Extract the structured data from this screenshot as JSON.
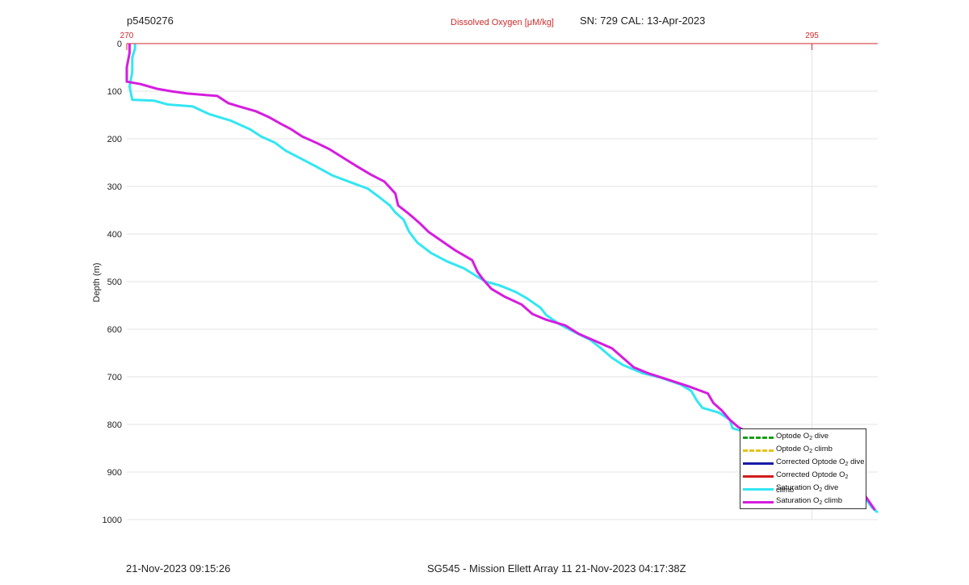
{
  "header": {
    "profile_id": "p5450276",
    "serial_cal": "SN: 729  CAL: 13-Apr-2023"
  },
  "footer": {
    "timestamp": "21-Nov-2023 09:15:26",
    "mission": "SG545 - Mission Ellett Array 11 21-Nov-2023 04:17:38Z"
  },
  "colors": {
    "optode_dive": "#1a9e1a",
    "optode_climb": "#e6c21a",
    "corrected_dive": "#1a1aa8",
    "corrected_climb": "#d01c1c",
    "saturation_dive": "#33e6f2",
    "saturation_climb": "#d61ce0",
    "top_axis": "#d12a2a"
  },
  "chart_data": {
    "type": "line",
    "title": "Dissolved Oxygen [μM/kg]",
    "xlabel": "Dissolved Oxygen [μM/kg]",
    "ylabel": "Depth (m)",
    "xlim": [
      270,
      297.4
    ],
    "ylim": [
      0,
      1000
    ],
    "y_reversed": true,
    "x_ticks": [
      270,
      295
    ],
    "y_ticks": [
      0,
      100,
      200,
      300,
      400,
      500,
      600,
      700,
      800,
      900,
      1000
    ],
    "grid": true,
    "legend_position": "bottom-right",
    "legend": [
      {
        "label": "Optode O",
        "sub": "2",
        "suffix": " dive",
        "color": "#1a9e1a",
        "style": "dashed"
      },
      {
        "label": "Optode O",
        "sub": "2",
        "suffix": " climb",
        "color": "#e6c21a",
        "style": "dashed"
      },
      {
        "label": "Corrected Optode O",
        "sub": "2",
        "suffix": " dive",
        "color": "#1a1aa8",
        "style": "solid"
      },
      {
        "label": "Corrected Optode O",
        "sub": "2",
        "suffix": " climb",
        "color": "#d01c1c",
        "style": "solid"
      },
      {
        "label": "Saturation O",
        "sub": "2",
        "suffix": " dive",
        "color": "#33e6f2",
        "style": "solid"
      },
      {
        "label": "Saturation O",
        "sub": "2",
        "suffix": " climb",
        "color": "#d61ce0",
        "style": "solid"
      }
    ],
    "series": [
      {
        "name": "Saturation O2 dive",
        "color": "#33e6f2",
        "points": [
          [
            270.3,
            1
          ],
          [
            270.3,
            10
          ],
          [
            270.2,
            30
          ],
          [
            270.2,
            60
          ],
          [
            270.1,
            90
          ],
          [
            270.2,
            118
          ],
          [
            271.0,
            120
          ],
          [
            271.5,
            128
          ],
          [
            272.4,
            132
          ],
          [
            273.0,
            148
          ],
          [
            273.8,
            162
          ],
          [
            274.5,
            180
          ],
          [
            274.9,
            195
          ],
          [
            275.4,
            208
          ],
          [
            275.8,
            225
          ],
          [
            276.3,
            240
          ],
          [
            276.9,
            258
          ],
          [
            277.5,
            277
          ],
          [
            278.2,
            292
          ],
          [
            278.8,
            305
          ],
          [
            279.2,
            322
          ],
          [
            279.6,
            340
          ],
          [
            279.8,
            355
          ],
          [
            280.1,
            370
          ],
          [
            280.3,
            395
          ],
          [
            280.6,
            418
          ],
          [
            281.1,
            440
          ],
          [
            281.7,
            458
          ],
          [
            282.3,
            472
          ],
          [
            282.8,
            490
          ],
          [
            283.1,
            500
          ],
          [
            283.6,
            508
          ],
          [
            284.2,
            522
          ],
          [
            284.6,
            535
          ],
          [
            285.1,
            555
          ],
          [
            285.3,
            570
          ],
          [
            285.8,
            590
          ],
          [
            286.3,
            605
          ],
          [
            286.9,
            622
          ],
          [
            287.3,
            640
          ],
          [
            287.7,
            660
          ],
          [
            288.1,
            675
          ],
          [
            288.8,
            692
          ],
          [
            289.5,
            702
          ],
          [
            290.2,
            716
          ],
          [
            290.6,
            730
          ],
          [
            290.8,
            750
          ],
          [
            291.0,
            765
          ],
          [
            291.6,
            775
          ],
          [
            292.0,
            790
          ],
          [
            292.1,
            808
          ],
          [
            292.8,
            820
          ],
          [
            293.3,
            830
          ],
          [
            294.1,
            840
          ],
          [
            294.3,
            850
          ],
          [
            294.9,
            862
          ],
          [
            295.3,
            880
          ],
          [
            295.7,
            895
          ],
          [
            296.2,
            910
          ],
          [
            296.5,
            925
          ],
          [
            296.9,
            945
          ],
          [
            297.0,
            960
          ],
          [
            297.2,
            975
          ],
          [
            297.4,
            985
          ]
        ]
      },
      {
        "name": "Saturation O2 climb",
        "color": "#d61ce0",
        "points": [
          [
            270.1,
            0
          ],
          [
            270.1,
            20
          ],
          [
            270.0,
            50
          ],
          [
            270.0,
            80
          ],
          [
            270.5,
            85
          ],
          [
            271.1,
            95
          ],
          [
            271.6,
            100
          ],
          [
            272.2,
            105
          ],
          [
            273.3,
            110
          ],
          [
            273.7,
            125
          ],
          [
            274.1,
            132
          ],
          [
            274.7,
            142
          ],
          [
            275.2,
            155
          ],
          [
            275.6,
            168
          ],
          [
            276.0,
            180
          ],
          [
            276.4,
            195
          ],
          [
            276.9,
            208
          ],
          [
            277.4,
            222
          ],
          [
            277.9,
            240
          ],
          [
            278.4,
            258
          ],
          [
            278.9,
            275
          ],
          [
            279.4,
            290
          ],
          [
            279.8,
            315
          ],
          [
            279.9,
            340
          ],
          [
            280.3,
            358
          ],
          [
            280.7,
            378
          ],
          [
            281.0,
            395
          ],
          [
            281.5,
            415
          ],
          [
            282.0,
            435
          ],
          [
            282.6,
            455
          ],
          [
            282.8,
            480
          ],
          [
            283.0,
            495
          ],
          [
            283.3,
            515
          ],
          [
            283.8,
            532
          ],
          [
            284.4,
            548
          ],
          [
            284.8,
            568
          ],
          [
            285.3,
            580
          ],
          [
            286.0,
            592
          ],
          [
            286.5,
            610
          ],
          [
            287.1,
            625
          ],
          [
            287.7,
            640
          ],
          [
            288.1,
            660
          ],
          [
            288.5,
            680
          ],
          [
            289.0,
            692
          ],
          [
            289.7,
            705
          ],
          [
            290.5,
            720
          ],
          [
            291.2,
            735
          ],
          [
            291.4,
            755
          ],
          [
            291.7,
            770
          ],
          [
            292.0,
            790
          ],
          [
            292.3,
            805
          ],
          [
            292.6,
            815
          ],
          [
            293.2,
            825
          ],
          [
            293.9,
            835
          ],
          [
            294.4,
            855
          ],
          [
            295.2,
            865
          ],
          [
            295.5,
            885
          ],
          [
            296.0,
            900
          ],
          [
            296.3,
            915
          ],
          [
            296.7,
            930
          ],
          [
            297.0,
            955
          ],
          [
            297.3,
            980
          ]
        ]
      }
    ]
  }
}
